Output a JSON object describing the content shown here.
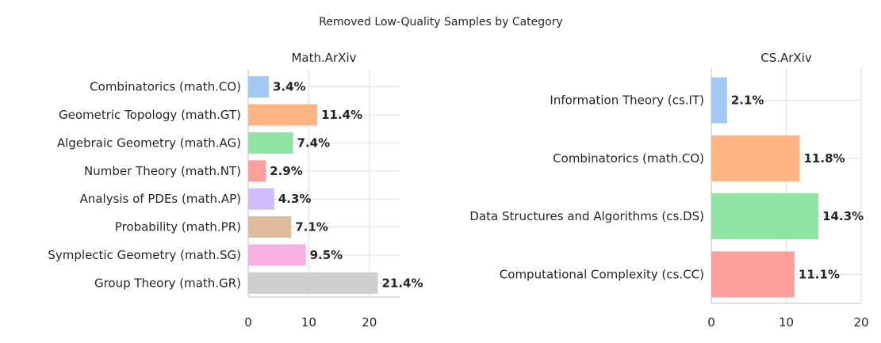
{
  "figure": {
    "title": "Removed Low-Quality Samples by Category"
  },
  "chart_data": [
    {
      "type": "bar",
      "orientation": "horizontal",
      "title": "Math.ArXiv",
      "xlabel": "",
      "ylabel": "",
      "xlim": [
        0,
        25
      ],
      "x_ticks": [
        0,
        10,
        20
      ],
      "grid": true,
      "categories": [
        "Combinatorics (math.CO)",
        "Geometric Topology (math.GT)",
        "Algebraic Geometry (math.AG)",
        "Number Theory (math.NT)",
        "Analysis of PDEs (math.AP)",
        "Probability (math.PR)",
        "Symplectic Geometry (math.SG)",
        "Group Theory (math.GR)"
      ],
      "values": [
        3.4,
        11.4,
        7.4,
        2.9,
        4.3,
        7.1,
        9.5,
        21.4
      ],
      "value_labels": [
        "3.4%",
        "11.4%",
        "7.4%",
        "2.9%",
        "4.3%",
        "7.1%",
        "9.5%",
        "21.4%"
      ],
      "colors": [
        "#a1c9f4",
        "#ffb482",
        "#8de5a1",
        "#ff9f9b",
        "#d0bbff",
        "#debb9b",
        "#fab0e4",
        "#cfcfcf"
      ]
    },
    {
      "type": "bar",
      "orientation": "horizontal",
      "title": "CS.ArXiv",
      "xlabel": "",
      "ylabel": "",
      "xlim": [
        0,
        20
      ],
      "x_ticks": [
        0,
        10,
        20
      ],
      "grid": true,
      "categories": [
        "Information Theory (cs.IT)",
        "Combinatorics (math.CO)",
        "Data Structures and Algorithms (cs.DS)",
        "Computational Complexity (cs.CC)"
      ],
      "values": [
        2.1,
        11.8,
        14.3,
        11.1
      ],
      "value_labels": [
        "2.1%",
        "11.8%",
        "14.3%",
        "11.1%"
      ],
      "colors": [
        "#a1c9f4",
        "#ffb482",
        "#8de5a1",
        "#ff9f9b"
      ]
    }
  ]
}
